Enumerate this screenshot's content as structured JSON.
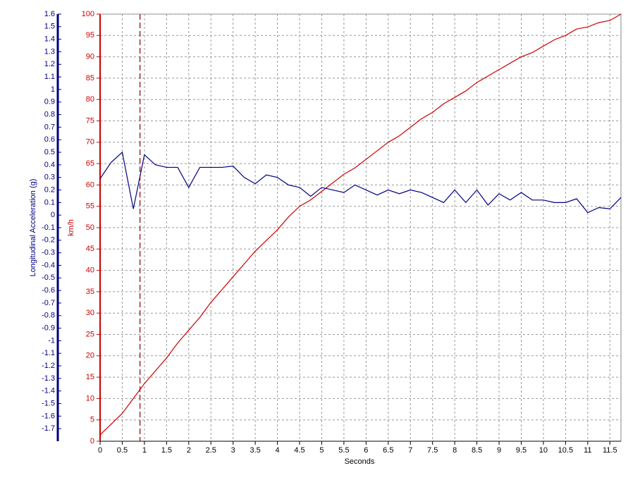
{
  "chart_data": {
    "type": "line",
    "x_label": "Seconds",
    "x": [
      0,
      0.25,
      0.5,
      0.75,
      1,
      1.25,
      1.5,
      1.75,
      2,
      2.25,
      2.5,
      2.75,
      3,
      3.25,
      3.5,
      3.75,
      4,
      4.25,
      4.5,
      4.75,
      5,
      5.25,
      5.5,
      5.75,
      6,
      6.25,
      6.5,
      6.75,
      7,
      7.25,
      7.5,
      7.75,
      8,
      8.25,
      8.5,
      8.75,
      9,
      9.25,
      9.5,
      9.75,
      10,
      10.25,
      10.5,
      10.75,
      11,
      11.25,
      11.5,
      11.75
    ],
    "series": [
      {
        "name": "km/h",
        "color": "#cc0000",
        "axis": "y",
        "values": [
          1.5,
          4,
          6.5,
          10,
          13.5,
          16.5,
          19.5,
          23,
          26,
          29,
          32.5,
          35.5,
          38.5,
          41.5,
          44.5,
          47,
          49.5,
          52.5,
          55,
          56.5,
          58.5,
          60.5,
          62.5,
          64,
          66,
          68,
          70,
          71.5,
          73.5,
          75.5,
          77,
          79,
          80.5,
          82,
          84,
          85.5,
          87,
          88.5,
          90,
          91,
          92.5,
          94,
          95,
          96.5,
          97,
          98,
          98.5,
          100
        ]
      },
      {
        "name": "Longitudinal Acceleration (g)",
        "color": "#000080",
        "axis": "y2",
        "values": [
          0.29,
          0.42,
          0.5,
          0.05,
          0.48,
          0.4,
          0.38,
          0.38,
          0.22,
          0.38,
          0.38,
          0.38,
          0.39,
          0.3,
          0.25,
          0.32,
          0.3,
          0.24,
          0.22,
          0.15,
          0.22,
          0.2,
          0.18,
          0.24,
          0.2,
          0.16,
          0.2,
          0.17,
          0.2,
          0.18,
          0.14,
          0.1,
          0.2,
          0.1,
          0.2,
          0.08,
          0.17,
          0.12,
          0.18,
          0.12,
          0.12,
          0.1,
          0.1,
          0.13,
          0.02,
          0.06,
          0.05,
          0.14
        ]
      }
    ],
    "xlim": [
      0,
      11.75
    ],
    "xticks": [
      0,
      0.5,
      1,
      1.5,
      2,
      2.5,
      3,
      3.5,
      4,
      4.5,
      5,
      5.5,
      6,
      6.5,
      7,
      7.5,
      8,
      8.5,
      9,
      9.5,
      10,
      10.5,
      11,
      11.5
    ],
    "ylim": [
      0,
      100
    ],
    "yticks": [
      0,
      5,
      10,
      15,
      20,
      25,
      30,
      35,
      40,
      45,
      50,
      55,
      60,
      65,
      70,
      75,
      80,
      85,
      90,
      95,
      100
    ],
    "y2lim": [
      -1.8,
      1.6
    ],
    "y2ticks": [
      1.6,
      1.5,
      1.4,
      1.3,
      1.2,
      1.1,
      1,
      0.9,
      0.8,
      0.7,
      0.6,
      0.5,
      0.4,
      0.3,
      0.2,
      0.1,
      0,
      -0.1,
      -0.2,
      -0.3,
      -0.4,
      -0.5,
      -0.6,
      -0.7,
      -0.8,
      -0.9,
      -1,
      -1.1,
      -1.2,
      -1.3,
      -1.4,
      -1.5,
      -1.6,
      -1.7
    ],
    "cursor_x": 0.9,
    "cursor_color": "#8b0000",
    "grid": true
  }
}
